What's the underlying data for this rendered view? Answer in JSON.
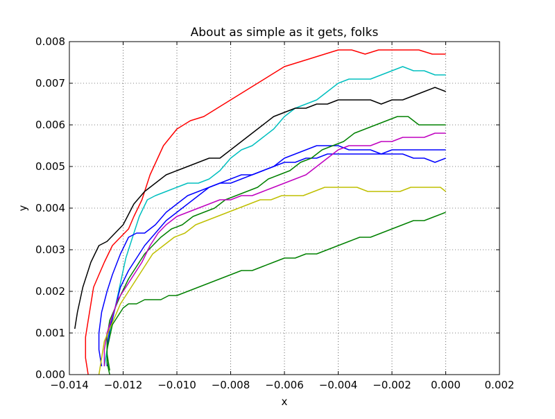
{
  "chart_data": {
    "type": "line",
    "title": "About as simple as it gets, folks",
    "xlabel": "x",
    "ylabel": "y",
    "xlim": [
      -0.014,
      0.002
    ],
    "ylim": [
      0.0,
      0.008
    ],
    "grid": true,
    "legend": "none",
    "xticks": [
      -0.014,
      -0.012,
      -0.01,
      -0.008,
      -0.006,
      -0.004,
      -0.002,
      0.0,
      0.002
    ],
    "xtick_labels": [
      "−0.014",
      "−0.012",
      "−0.010",
      "−0.008",
      "−0.006",
      "−0.004",
      "−0.002",
      "0.000",
      "0.002"
    ],
    "yticks": [
      0.0,
      0.001,
      0.002,
      0.003,
      0.004,
      0.005,
      0.006,
      0.007,
      0.008
    ],
    "ytick_labels": [
      "0.000",
      "0.001",
      "0.002",
      "0.003",
      "0.004",
      "0.005",
      "0.006",
      "0.007",
      "0.008"
    ],
    "series": [
      {
        "color": "#ff0000",
        "x": [
          -0.0133,
          -0.0134,
          -0.0134,
          -0.0133,
          -0.0132,
          -0.0131,
          -0.0129,
          -0.0127,
          -0.0124,
          -0.0121,
          -0.0118,
          -0.0116,
          -0.0113,
          -0.011,
          -0.0105,
          -0.01,
          -0.0095,
          -0.009,
          -0.0085,
          -0.008,
          -0.0075,
          -0.007,
          -0.0065,
          -0.006,
          -0.0055,
          -0.005,
          -0.0045,
          -0.004,
          -0.0035,
          -0.003,
          -0.0025,
          -0.002,
          -0.0015,
          -0.001,
          -0.0005,
          0.0
        ],
        "y": [
          0.0,
          0.0004,
          0.0009,
          0.0013,
          0.0017,
          0.0021,
          0.0024,
          0.0027,
          0.0031,
          0.0033,
          0.0035,
          0.0038,
          0.0042,
          0.0048,
          0.0055,
          0.0059,
          0.0061,
          0.0062,
          0.0064,
          0.0066,
          0.0068,
          0.007,
          0.0072,
          0.0074,
          0.0075,
          0.0076,
          0.0077,
          0.0078,
          0.0078,
          0.0077,
          0.0078,
          0.0078,
          0.0078,
          0.0078,
          0.0077,
          0.0077
        ]
      },
      {
        "color": "#00bfbf",
        "x": [
          -0.0127,
          -0.0126,
          -0.0125,
          -0.0123,
          -0.0121,
          -0.0119,
          -0.0116,
          -0.0114,
          -0.0111,
          -0.0108,
          -0.0104,
          -0.01,
          -0.0096,
          -0.0092,
          -0.0088,
          -0.0084,
          -0.008,
          -0.0076,
          -0.0072,
          -0.0068,
          -0.0064,
          -0.006,
          -0.0056,
          -0.0052,
          -0.0048,
          -0.0044,
          -0.004,
          -0.0036,
          -0.0032,
          -0.0028,
          -0.0024,
          -0.002,
          -0.0016,
          -0.0012,
          -0.0008,
          -0.0004,
          0.0
        ],
        "y": [
          0.0002,
          0.0006,
          0.001,
          0.0016,
          0.0022,
          0.0028,
          0.0034,
          0.0038,
          0.0042,
          0.0043,
          0.0044,
          0.0045,
          0.0046,
          0.0046,
          0.0047,
          0.0049,
          0.0052,
          0.0054,
          0.0055,
          0.0057,
          0.0059,
          0.0062,
          0.0064,
          0.0065,
          0.0066,
          0.0068,
          0.007,
          0.0071,
          0.0071,
          0.0071,
          0.0072,
          0.0073,
          0.0074,
          0.0073,
          0.0073,
          0.0072,
          0.0072
        ]
      },
      {
        "color": "#000000",
        "x": [
          -0.0138,
          -0.0137,
          -0.0135,
          -0.0132,
          -0.0129,
          -0.0126,
          -0.0123,
          -0.012,
          -0.0116,
          -0.0112,
          -0.0108,
          -0.0104,
          -0.01,
          -0.0096,
          -0.0092,
          -0.0088,
          -0.0084,
          -0.008,
          -0.0076,
          -0.0072,
          -0.0068,
          -0.0064,
          -0.006,
          -0.0056,
          -0.0052,
          -0.0048,
          -0.0044,
          -0.004,
          -0.0036,
          -0.0032,
          -0.0028,
          -0.0024,
          -0.002,
          -0.0016,
          -0.0012,
          -0.0008,
          -0.0004,
          0.0
        ],
        "y": [
          0.0011,
          0.0015,
          0.0021,
          0.0027,
          0.0031,
          0.0032,
          0.0034,
          0.0036,
          0.0041,
          0.0044,
          0.0046,
          0.0048,
          0.0049,
          0.005,
          0.0051,
          0.0052,
          0.0052,
          0.0054,
          0.0056,
          0.0058,
          0.006,
          0.0062,
          0.0063,
          0.0064,
          0.0064,
          0.0065,
          0.0065,
          0.0066,
          0.0066,
          0.0066,
          0.0066,
          0.0065,
          0.0066,
          0.0066,
          0.0067,
          0.0068,
          0.0069,
          0.0068
        ]
      },
      {
        "color": "#0000ff",
        "x": [
          -0.0128,
          -0.0129,
          -0.0129,
          -0.0128,
          -0.0126,
          -0.0124,
          -0.0121,
          -0.0118,
          -0.0115,
          -0.0112,
          -0.0108,
          -0.0104,
          -0.01,
          -0.0096,
          -0.0092,
          -0.0088,
          -0.0084,
          -0.008,
          -0.0076,
          -0.0072,
          -0.0068,
          -0.0064,
          -0.006,
          -0.0056,
          -0.0052,
          -0.0048,
          -0.0044,
          -0.004,
          -0.0036,
          -0.0032,
          -0.0028,
          -0.0024,
          -0.002,
          -0.0016,
          -0.0012,
          -0.0008,
          -0.0004,
          0.0
        ],
        "y": [
          0.0002,
          0.0006,
          0.001,
          0.0015,
          0.002,
          0.0024,
          0.0029,
          0.0033,
          0.0034,
          0.0034,
          0.0036,
          0.0039,
          0.0041,
          0.0043,
          0.0044,
          0.0045,
          0.0046,
          0.0047,
          0.0048,
          0.0048,
          0.0049,
          0.005,
          0.0051,
          0.0051,
          0.0052,
          0.0052,
          0.0053,
          0.0053,
          0.0053,
          0.0053,
          0.0053,
          0.0053,
          0.0054,
          0.0054,
          0.0054,
          0.0054,
          0.0054,
          0.0054
        ]
      },
      {
        "color": "#0000ff",
        "x": [
          -0.0126,
          -0.0126,
          -0.0125,
          -0.0123,
          -0.0121,
          -0.0118,
          -0.0115,
          -0.0112,
          -0.0108,
          -0.0104,
          -0.01,
          -0.0096,
          -0.0092,
          -0.0088,
          -0.0084,
          -0.008,
          -0.0076,
          -0.0072,
          -0.0068,
          -0.0064,
          -0.006,
          -0.0056,
          -0.0052,
          -0.0048,
          -0.0044,
          -0.004,
          -0.0036,
          -0.0032,
          -0.0028,
          -0.0024,
          -0.002,
          -0.0016,
          -0.0012,
          -0.0008,
          -0.0004,
          0.0
        ],
        "y": [
          0.0002,
          0.0006,
          0.0011,
          0.0016,
          0.0021,
          0.0025,
          0.0028,
          0.0031,
          0.0034,
          0.0037,
          0.0039,
          0.0041,
          0.0043,
          0.0045,
          0.0046,
          0.0046,
          0.0047,
          0.0048,
          0.0049,
          0.005,
          0.0052,
          0.0053,
          0.0054,
          0.0055,
          0.0055,
          0.0055,
          0.0054,
          0.0054,
          0.0054,
          0.0053,
          0.0053,
          0.0053,
          0.0052,
          0.0052,
          0.0051,
          0.0052
        ]
      },
      {
        "color": "#008000",
        "x": [
          -0.0125,
          -0.0126,
          -0.0126,
          -0.0125,
          -0.0123,
          -0.0121,
          -0.0118,
          -0.0115,
          -0.0112,
          -0.0109,
          -0.0106,
          -0.0102,
          -0.0098,
          -0.0094,
          -0.009,
          -0.0086,
          -0.0082,
          -0.0078,
          -0.0074,
          -0.007,
          -0.0066,
          -0.0062,
          -0.0058,
          -0.0054,
          -0.005,
          -0.0046,
          -0.0042,
          -0.0038,
          -0.0034,
          -0.003,
          -0.0026,
          -0.0022,
          -0.0018,
          -0.0014,
          -0.001,
          -0.0006,
          -0.0002,
          0.0
        ],
        "y": [
          0.0001,
          0.0005,
          0.0009,
          0.0013,
          0.0016,
          0.0019,
          0.0023,
          0.0026,
          0.0029,
          0.0031,
          0.0033,
          0.0035,
          0.0036,
          0.0038,
          0.0039,
          0.004,
          0.0042,
          0.0043,
          0.0044,
          0.0045,
          0.0047,
          0.0048,
          0.0049,
          0.0051,
          0.0052,
          0.0054,
          0.0055,
          0.0056,
          0.0058,
          0.0059,
          0.006,
          0.0061,
          0.0062,
          0.0062,
          0.006,
          0.006,
          0.006,
          0.006
        ]
      },
      {
        "color": "#bf00bf",
        "x": [
          -0.0127,
          -0.0127,
          -0.0126,
          -0.0124,
          -0.0122,
          -0.0119,
          -0.0116,
          -0.0113,
          -0.011,
          -0.0107,
          -0.0104,
          -0.01,
          -0.0096,
          -0.0092,
          -0.0088,
          -0.0084,
          -0.008,
          -0.0076,
          -0.0072,
          -0.0068,
          -0.0064,
          -0.006,
          -0.0056,
          -0.0052,
          -0.0048,
          -0.0044,
          -0.004,
          -0.0036,
          -0.0032,
          -0.0028,
          -0.0024,
          -0.002,
          -0.0016,
          -0.0012,
          -0.0008,
          -0.0004,
          0.0
        ],
        "y": [
          0.0002,
          0.0006,
          0.001,
          0.0014,
          0.0018,
          0.0021,
          0.0024,
          0.0027,
          0.0031,
          0.0034,
          0.0036,
          0.0038,
          0.0039,
          0.004,
          0.0041,
          0.0042,
          0.0042,
          0.0043,
          0.0043,
          0.0044,
          0.0045,
          0.0046,
          0.0047,
          0.0048,
          0.005,
          0.0052,
          0.0054,
          0.0055,
          0.0055,
          0.0055,
          0.0056,
          0.0056,
          0.0057,
          0.0057,
          0.0057,
          0.0058,
          0.0058
        ]
      },
      {
        "color": "#bfbf00",
        "x": [
          -0.0129,
          -0.0128,
          -0.0127,
          -0.0125,
          -0.0123,
          -0.0121,
          -0.0118,
          -0.0115,
          -0.0112,
          -0.0109,
          -0.0105,
          -0.0101,
          -0.0097,
          -0.0093,
          -0.0089,
          -0.0085,
          -0.0081,
          -0.0077,
          -0.0073,
          -0.0069,
          -0.0065,
          -0.0061,
          -0.0057,
          -0.0053,
          -0.0049,
          -0.0045,
          -0.0041,
          -0.0037,
          -0.0033,
          -0.0029,
          -0.0025,
          -0.0021,
          -0.0017,
          -0.0013,
          -0.0009,
          -0.0005,
          -0.0002,
          0.0
        ],
        "y": [
          0.0,
          0.0004,
          0.0008,
          0.0011,
          0.0014,
          0.0017,
          0.002,
          0.0023,
          0.0026,
          0.0029,
          0.0031,
          0.0033,
          0.0034,
          0.0036,
          0.0037,
          0.0038,
          0.0039,
          0.004,
          0.0041,
          0.0042,
          0.0042,
          0.0043,
          0.0043,
          0.0043,
          0.0044,
          0.0045,
          0.0045,
          0.0045,
          0.0045,
          0.0044,
          0.0044,
          0.0044,
          0.0044,
          0.0045,
          0.0045,
          0.0045,
          0.0045,
          0.0044
        ]
      },
      {
        "color": "#008000",
        "x": [
          -0.0125,
          -0.0126,
          -0.0126,
          -0.0125,
          -0.0124,
          -0.0122,
          -0.012,
          -0.0118,
          -0.0115,
          -0.0112,
          -0.0109,
          -0.0106,
          -0.0103,
          -0.01,
          -0.0096,
          -0.0092,
          -0.0088,
          -0.0084,
          -0.008,
          -0.0076,
          -0.0072,
          -0.0068,
          -0.0064,
          -0.006,
          -0.0056,
          -0.0052,
          -0.0048,
          -0.0044,
          -0.004,
          -0.0036,
          -0.0032,
          -0.0028,
          -0.0024,
          -0.002,
          -0.0016,
          -0.0012,
          -0.0008,
          -0.0004,
          0.0
        ],
        "y": [
          0.0,
          0.0003,
          0.0006,
          0.0009,
          0.0012,
          0.0014,
          0.0016,
          0.0017,
          0.0017,
          0.0018,
          0.0018,
          0.0018,
          0.0019,
          0.0019,
          0.002,
          0.0021,
          0.0022,
          0.0023,
          0.0024,
          0.0025,
          0.0025,
          0.0026,
          0.0027,
          0.0028,
          0.0028,
          0.0029,
          0.0029,
          0.003,
          0.0031,
          0.0032,
          0.0033,
          0.0033,
          0.0034,
          0.0035,
          0.0036,
          0.0037,
          0.0037,
          0.0038,
          0.0039
        ]
      }
    ]
  }
}
